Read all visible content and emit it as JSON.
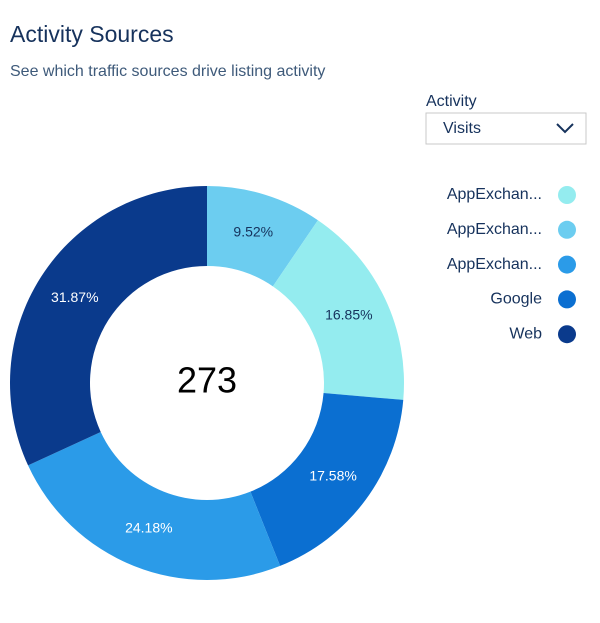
{
  "header": {
    "title": "Activity Sources",
    "subtitle": "See which traffic sources drive listing activity"
  },
  "filter": {
    "label": "Activity",
    "selected": "Visits"
  },
  "chart_data": {
    "type": "donut",
    "total": 273,
    "values": [
      9.52,
      16.85,
      17.58,
      24.18,
      31.87
    ],
    "value_labels": [
      "9.52%",
      "16.85%",
      "17.58%",
      "24.18%",
      "31.87%"
    ],
    "colors": [
      "#6ccdf0",
      "#94ecef",
      "#0b6fd1",
      "#2b9be8",
      "#0a3a8c"
    ],
    "legend": [
      {
        "name": "AppExchan...",
        "color": "#94ecef"
      },
      {
        "name": "AppExchan...",
        "color": "#6ccdf0"
      },
      {
        "name": "AppExchan...",
        "color": "#2b9be8"
      },
      {
        "name": "Google",
        "color": "#0b6fd1"
      },
      {
        "name": "Web",
        "color": "#0a3a8c"
      }
    ]
  }
}
